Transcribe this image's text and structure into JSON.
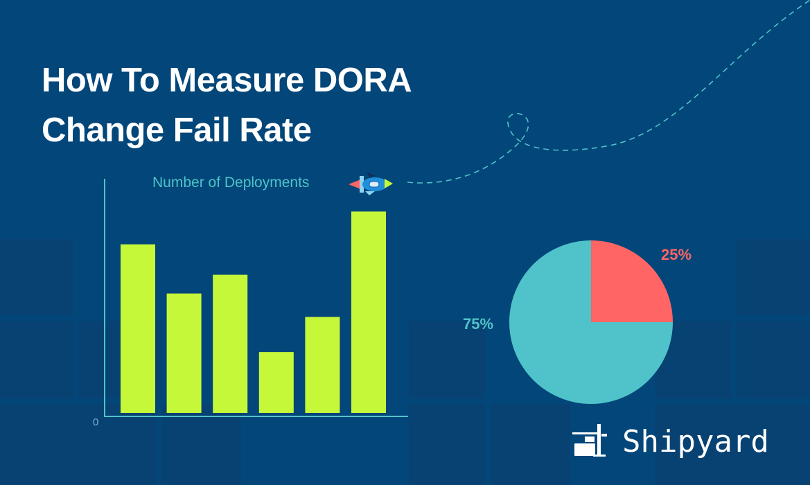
{
  "title_lines": [
    "How To Measure DORA",
    "Change Fail Rate"
  ],
  "brand": "Shipyard",
  "colors": {
    "background": "#034679",
    "bar": "#c6f83a",
    "axis": "#4fc3c9",
    "pie_fail": "#ff6565",
    "pie_success": "#4fc3c9"
  },
  "icons": [
    "rocket-icon",
    "shipyard-crane-logo-icon"
  ],
  "chart_data": [
    {
      "type": "bar",
      "title": "Number of Deployments",
      "yticks": [
        "0"
      ],
      "ylim": [
        0,
        1
      ],
      "values": [
        0.72,
        0.51,
        0.59,
        0.26,
        0.41,
        0.86
      ],
      "grid": false
    },
    {
      "type": "pie",
      "slices": [
        {
          "label": "25%",
          "value": 25,
          "color": "#ff6565"
        },
        {
          "label": "75%",
          "value": 75,
          "color": "#4fc3c9"
        }
      ]
    }
  ]
}
